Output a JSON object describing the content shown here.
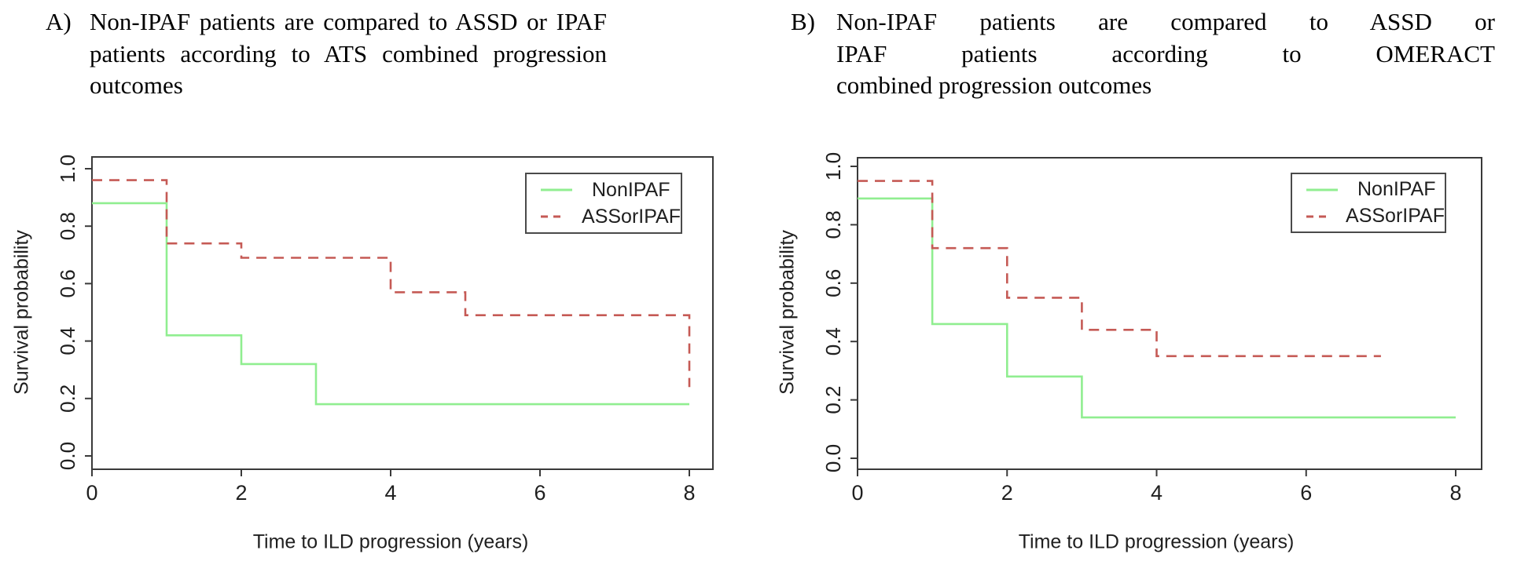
{
  "figure": {
    "background_color": "#ffffff",
    "axis_color": "#3a3a3a",
    "text_color": "#1f1f1f"
  },
  "chart_data": [
    {
      "type": "line",
      "subtype": "kaplan-meier-step",
      "panel": "A",
      "panel_label": "A)",
      "title": "Non-IPAF patients are compared to ASSD or IPAF patients according to ATS combined progression outcomes",
      "title_lines": [
        "Non-IPAF patients are compared to ASSD or IPAF",
        "patients according to ATS combined progression",
        "outcomes"
      ],
      "xlabel": "Time to ILD progression (years)",
      "ylabel": "Survival probability",
      "xlim": [
        0,
        8.3
      ],
      "ylim": [
        -0.04,
        1.04
      ],
      "xticks": [
        0,
        2,
        4,
        6,
        8
      ],
      "yticks": [
        "0.0",
        "0.2",
        "0.4",
        "0.6",
        "0.8",
        "1.0"
      ],
      "grid": false,
      "legend_position": "top-right",
      "series": [
        {
          "name": "NonIPAF",
          "color": "#90EE90",
          "style": "solid",
          "steps": [
            [
              0,
              0.88
            ],
            [
              1,
              0.42
            ],
            [
              2,
              0.32
            ],
            [
              3,
              0.18
            ]
          ],
          "end_x": 8
        },
        {
          "name": "ASSorIPAF",
          "color": "#C55A55",
          "style": "dashed",
          "steps": [
            [
              0,
              0.96
            ],
            [
              1,
              0.74
            ],
            [
              2,
              0.69
            ],
            [
              4,
              0.57
            ],
            [
              5,
              0.49
            ]
          ],
          "end_x": 8,
          "end_drop_to": 0.24
        }
      ]
    },
    {
      "type": "line",
      "subtype": "kaplan-meier-step",
      "panel": "B",
      "panel_label": "B)",
      "title": "Non-IPAF patients are compared to ASSD or IPAF patients according to OMERACT combined progression outcomes",
      "title_lines": [
        "Non-IPAF patients are compared to ASSD or",
        "IPAF patients according to OMERACT",
        "combined progression outcomes"
      ],
      "xlabel": "Time to ILD progression (years)",
      "ylabel": "Survival probability",
      "xlim": [
        0,
        8.3
      ],
      "ylim": [
        -0.04,
        1.04
      ],
      "xticks": [
        0,
        2,
        4,
        6,
        8
      ],
      "yticks": [
        "0.0",
        "0.2",
        "0.4",
        "0.6",
        "0.8",
        "1.0"
      ],
      "grid": false,
      "legend_position": "top-right",
      "series": [
        {
          "name": "NonIPAF",
          "color": "#90EE90",
          "style": "solid",
          "steps": [
            [
              0,
              0.89
            ],
            [
              1,
              0.46
            ],
            [
              2,
              0.28
            ],
            [
              3,
              0.14
            ]
          ],
          "end_x": 8
        },
        {
          "name": "ASSorIPAF",
          "color": "#C55A55",
          "style": "dashed",
          "steps": [
            [
              0,
              0.95
            ],
            [
              1,
              0.72
            ],
            [
              2,
              0.55
            ],
            [
              3,
              0.44
            ],
            [
              4,
              0.35
            ]
          ],
          "end_x": 7
        }
      ]
    }
  ]
}
